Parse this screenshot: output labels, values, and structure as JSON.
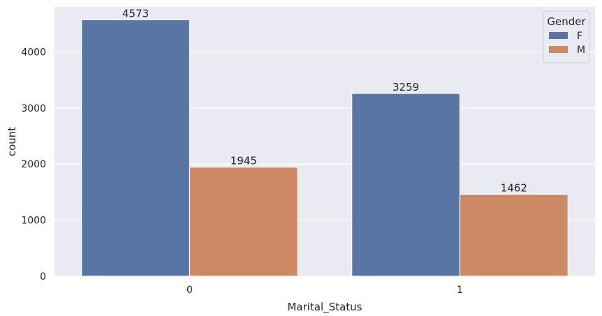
{
  "chart_data": {
    "type": "bar",
    "title": "",
    "xlabel": "Marital_Status",
    "ylabel": "count",
    "categories": [
      "0",
      "1"
    ],
    "series": [
      {
        "name": "F",
        "values": [
          4573,
          3259
        ],
        "color": "#5975a4"
      },
      {
        "name": "M",
        "values": [
          1945,
          1462
        ],
        "color": "#cc8963"
      }
    ],
    "ylim": [
      0,
      4800
    ],
    "yticks": [
      0,
      1000,
      2000,
      3000,
      4000
    ],
    "grid": true,
    "background": "#eaeaf2",
    "legend": {
      "title": "Gender",
      "placement": "top-right"
    }
  }
}
